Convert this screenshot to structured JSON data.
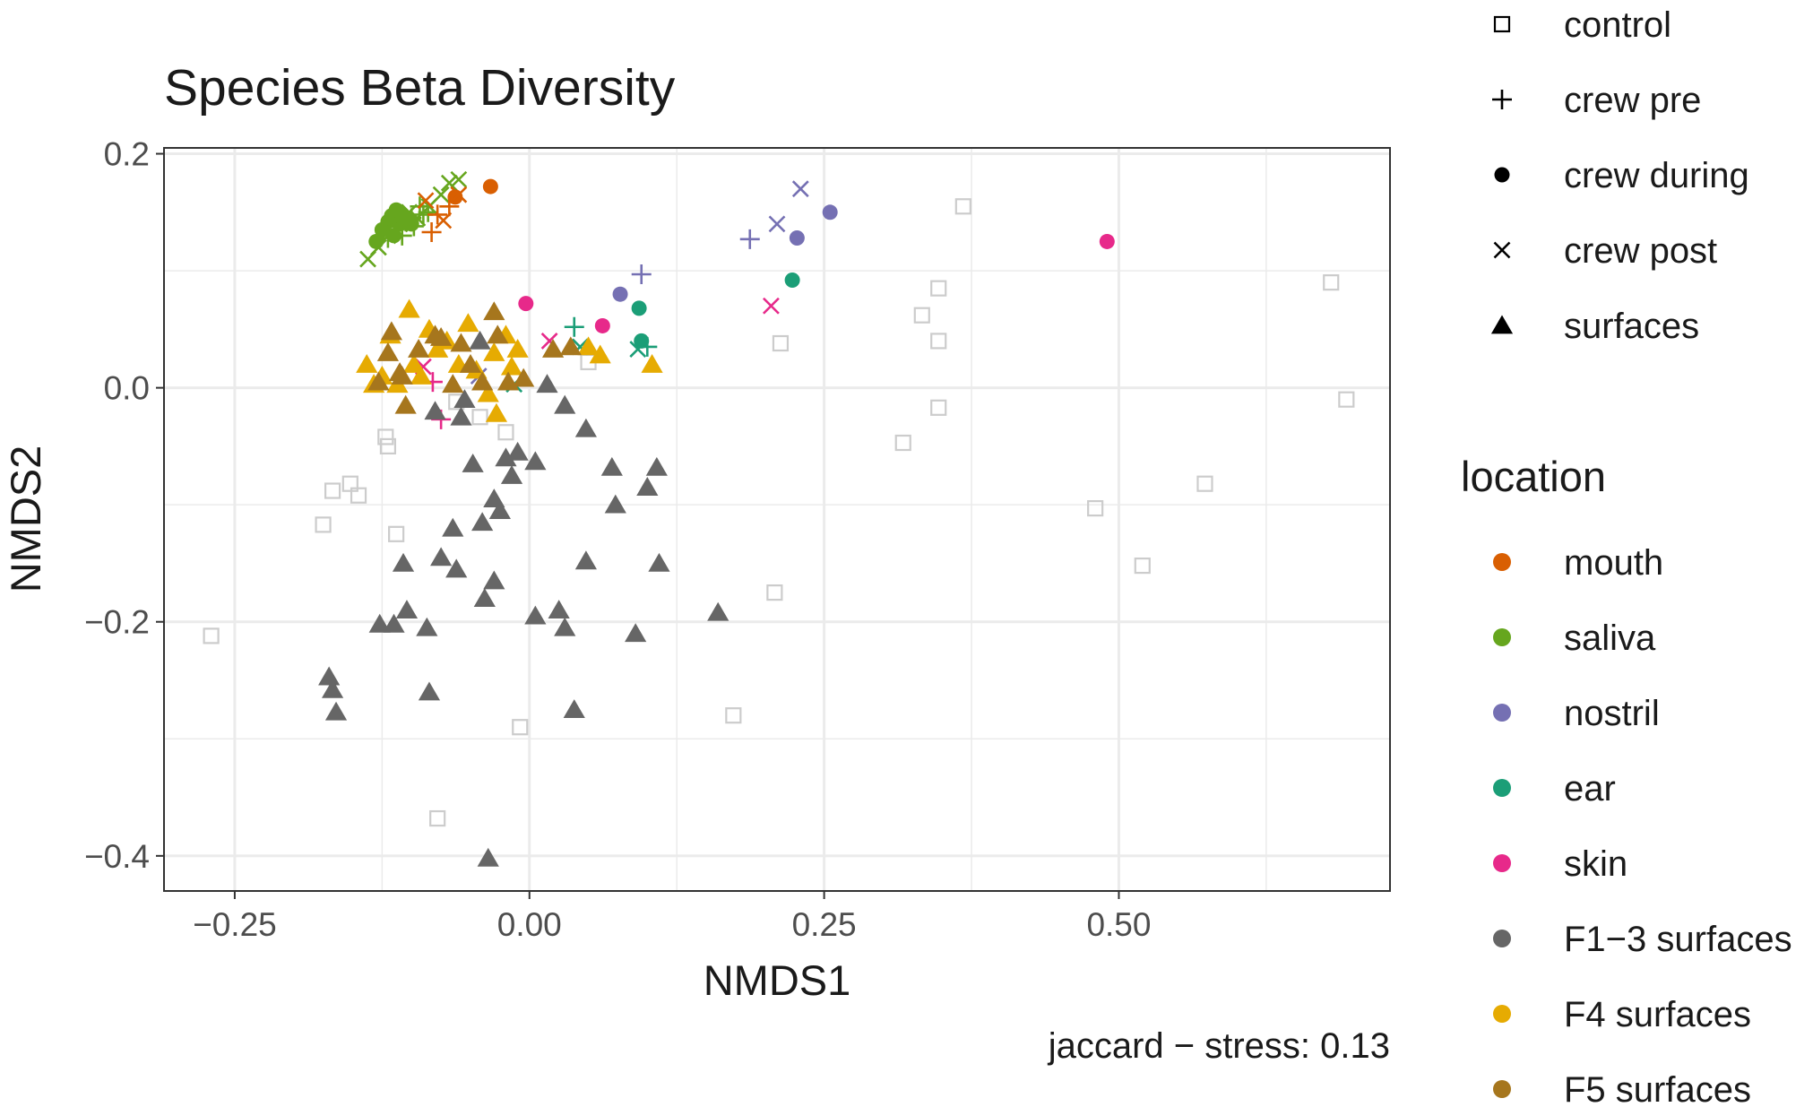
{
  "chart_data": {
    "type": "scatter",
    "title": "Species Beta Diversity",
    "xlabel": "NMDS1",
    "ylabel": "NMDS2",
    "xlim": [
      -0.31,
      0.73
    ],
    "ylim": [
      -0.43,
      0.205
    ],
    "x_ticks": [
      -0.25,
      0.0,
      0.25,
      0.5
    ],
    "x_tick_labels": [
      "−0.25",
      "0.00",
      "0.25",
      "0.50"
    ],
    "y_ticks": [
      -0.4,
      -0.2,
      0.0,
      0.2
    ],
    "y_tick_labels": [
      "−0.4",
      "−0.2",
      "0.0",
      "0.2"
    ],
    "grid": true,
    "caption": "jaccard − stress: 0.13",
    "shape_legend": {
      "items": [
        {
          "shape": "square",
          "label": "control"
        },
        {
          "shape": "plus",
          "label": "crew pre"
        },
        {
          "shape": "circle",
          "label": "crew during"
        },
        {
          "shape": "cross",
          "label": "crew post"
        },
        {
          "shape": "triangle",
          "label": "surfaces"
        }
      ]
    },
    "color_legend": {
      "title": "location",
      "items": [
        {
          "label": "mouth",
          "color": "#D95F02"
        },
        {
          "label": "saliva",
          "color": "#66A61E"
        },
        {
          "label": "nostril",
          "color": "#7570B3"
        },
        {
          "label": "ear",
          "color": "#1B9E77"
        },
        {
          "label": "skin",
          "color": "#E7298A"
        },
        {
          "label": "F1−3 surfaces",
          "color": "#666666"
        },
        {
          "label": "F4 surfaces",
          "color": "#E6AB02"
        },
        {
          "label": "F5 surfaces",
          "color": "#A6761D"
        }
      ]
    },
    "control_color": "#cccccc",
    "series": [
      {
        "location": "control",
        "shape": "square",
        "points": [
          [
            -0.27,
            -0.212
          ],
          [
            -0.175,
            -0.117
          ],
          [
            -0.167,
            -0.088
          ],
          [
            -0.152,
            -0.082
          ],
          [
            -0.145,
            -0.092
          ],
          [
            -0.122,
            -0.042
          ],
          [
            -0.12,
            -0.05
          ],
          [
            -0.113,
            -0.125
          ],
          [
            -0.078,
            -0.368
          ],
          [
            -0.062,
            -0.012
          ],
          [
            -0.042,
            -0.025
          ],
          [
            -0.02,
            -0.038
          ],
          [
            -0.008,
            -0.29
          ],
          [
            0.05,
            0.022
          ],
          [
            0.173,
            -0.28
          ],
          [
            0.208,
            -0.175
          ],
          [
            0.213,
            0.038
          ],
          [
            0.317,
            -0.047
          ],
          [
            0.333,
            0.062
          ],
          [
            0.347,
            0.085
          ],
          [
            0.347,
            0.04
          ],
          [
            0.347,
            -0.017
          ],
          [
            0.368,
            0.155
          ],
          [
            0.48,
            -0.103
          ],
          [
            0.52,
            -0.152
          ],
          [
            0.573,
            -0.082
          ],
          [
            0.68,
            0.09
          ],
          [
            0.693,
            -0.01
          ]
        ]
      },
      {
        "location": "saliva",
        "shape": "circle",
        "points": [
          [
            -0.13,
            0.125
          ],
          [
            -0.125,
            0.135
          ],
          [
            -0.12,
            0.142
          ],
          [
            -0.117,
            0.147
          ],
          [
            -0.113,
            0.152
          ],
          [
            -0.108,
            0.148
          ],
          [
            -0.11,
            0.14
          ],
          [
            -0.104,
            0.145
          ],
          [
            -0.115,
            0.13
          ],
          [
            -0.1,
            0.14
          ]
        ]
      },
      {
        "location": "saliva",
        "shape": "plus",
        "points": [
          [
            -0.115,
            0.135
          ],
          [
            -0.108,
            0.13
          ],
          [
            -0.1,
            0.145
          ],
          [
            -0.093,
            0.155
          ],
          [
            -0.086,
            0.15
          ],
          [
            -0.098,
            0.138
          ],
          [
            -0.12,
            0.128
          ],
          [
            -0.105,
            0.142
          ],
          [
            -0.09,
            0.148
          ],
          [
            -0.112,
            0.138
          ]
        ]
      },
      {
        "location": "saliva",
        "shape": "cross",
        "points": [
          [
            -0.137,
            0.11
          ],
          [
            -0.12,
            0.13
          ],
          [
            -0.11,
            0.14
          ],
          [
            -0.095,
            0.145
          ],
          [
            -0.085,
            0.155
          ],
          [
            -0.075,
            0.165
          ],
          [
            -0.068,
            0.175
          ],
          [
            -0.06,
            0.178
          ],
          [
            -0.102,
            0.15
          ],
          [
            -0.128,
            0.12
          ]
        ]
      },
      {
        "location": "mouth",
        "shape": "circle",
        "points": [
          [
            -0.033,
            0.172
          ],
          [
            -0.063,
            0.163
          ]
        ]
      },
      {
        "location": "mouth",
        "shape": "plus",
        "points": [
          [
            -0.083,
            0.133
          ],
          [
            -0.068,
            0.155
          ],
          [
            -0.078,
            0.148
          ]
        ]
      },
      {
        "location": "mouth",
        "shape": "cross",
        "points": [
          [
            -0.073,
            0.143
          ],
          [
            -0.06,
            0.165
          ],
          [
            -0.088,
            0.16
          ]
        ]
      },
      {
        "location": "nostril",
        "shape": "circle",
        "points": [
          [
            0.077,
            0.08
          ],
          [
            0.227,
            0.128
          ],
          [
            0.255,
            0.15
          ]
        ]
      },
      {
        "location": "nostril",
        "shape": "plus",
        "points": [
          [
            0.095,
            0.097
          ],
          [
            0.187,
            0.127
          ]
        ]
      },
      {
        "location": "nostril",
        "shape": "cross",
        "points": [
          [
            -0.043,
            0.01
          ],
          [
            0.21,
            0.14
          ],
          [
            0.23,
            0.17
          ]
        ]
      },
      {
        "location": "ear",
        "shape": "circle",
        "points": [
          [
            0.093,
            0.068
          ],
          [
            0.095,
            0.04
          ],
          [
            0.223,
            0.092
          ]
        ]
      },
      {
        "location": "ear",
        "shape": "plus",
        "points": [
          [
            0.038,
            0.052
          ],
          [
            0.1,
            0.035
          ]
        ]
      },
      {
        "location": "ear",
        "shape": "cross",
        "points": [
          [
            -0.013,
            0.003
          ],
          [
            0.043,
            0.035
          ],
          [
            0.092,
            0.033
          ]
        ]
      },
      {
        "location": "skin",
        "shape": "circle",
        "points": [
          [
            -0.003,
            0.072
          ],
          [
            0.062,
            0.053
          ],
          [
            0.49,
            0.125
          ]
        ]
      },
      {
        "location": "skin",
        "shape": "plus",
        "points": [
          [
            -0.082,
            0.005
          ],
          [
            -0.075,
            -0.027
          ]
        ]
      },
      {
        "location": "skin",
        "shape": "cross",
        "points": [
          [
            -0.09,
            0.018
          ],
          [
            0.017,
            0.04
          ],
          [
            0.205,
            0.07
          ]
        ]
      },
      {
        "location": "F1−3 surfaces",
        "shape": "triangle",
        "points": [
          [
            -0.17,
            -0.247
          ],
          [
            -0.167,
            -0.258
          ],
          [
            -0.164,
            -0.277
          ],
          [
            -0.127,
            -0.202
          ],
          [
            -0.115,
            -0.202
          ],
          [
            -0.104,
            -0.19
          ],
          [
            -0.107,
            -0.15
          ],
          [
            -0.087,
            -0.205
          ],
          [
            -0.085,
            -0.26
          ],
          [
            -0.075,
            -0.145
          ],
          [
            -0.065,
            -0.12
          ],
          [
            -0.062,
            -0.155
          ],
          [
            -0.058,
            -0.025
          ],
          [
            -0.08,
            -0.02
          ],
          [
            -0.048,
            -0.065
          ],
          [
            -0.04,
            -0.115
          ],
          [
            -0.038,
            -0.18
          ],
          [
            -0.03,
            -0.165
          ],
          [
            -0.03,
            -0.095
          ],
          [
            -0.025,
            -0.105
          ],
          [
            -0.02,
            -0.06
          ],
          [
            -0.015,
            -0.075
          ],
          [
            -0.01,
            -0.055
          ],
          [
            0.005,
            -0.063
          ],
          [
            0.005,
            -0.195
          ],
          [
            0.015,
            0.003
          ],
          [
            0.025,
            -0.19
          ],
          [
            0.03,
            -0.205
          ],
          [
            0.03,
            -0.015
          ],
          [
            0.038,
            -0.275
          ],
          [
            0.048,
            -0.035
          ],
          [
            0.048,
            -0.148
          ],
          [
            0.07,
            -0.068
          ],
          [
            0.073,
            -0.1
          ],
          [
            0.09,
            -0.21
          ],
          [
            0.1,
            -0.085
          ],
          [
            0.108,
            -0.068
          ],
          [
            0.11,
            -0.15
          ],
          [
            0.16,
            -0.192
          ],
          [
            -0.035,
            -0.402
          ],
          [
            -0.042,
            0.04
          ],
          [
            -0.055,
            -0.01
          ]
        ]
      },
      {
        "location": "F4 surfaces",
        "shape": "triangle",
        "points": [
          [
            -0.138,
            0.02
          ],
          [
            -0.132,
            0.003
          ],
          [
            -0.118,
            0.045
          ],
          [
            -0.112,
            0.003
          ],
          [
            -0.102,
            0.067
          ],
          [
            -0.098,
            0.02
          ],
          [
            -0.092,
            0.01
          ],
          [
            -0.085,
            0.05
          ],
          [
            -0.078,
            0.033
          ],
          [
            -0.07,
            0.04
          ],
          [
            -0.06,
            0.02
          ],
          [
            -0.052,
            0.055
          ],
          [
            -0.045,
            0.015
          ],
          [
            -0.035,
            -0.005
          ],
          [
            -0.03,
            0.03
          ],
          [
            -0.028,
            -0.022
          ],
          [
            -0.02,
            0.045
          ],
          [
            -0.015,
            0.018
          ],
          [
            -0.01,
            0.033
          ],
          [
            0.05,
            0.035
          ],
          [
            0.06,
            0.028
          ],
          [
            0.104,
            0.02
          ],
          [
            -0.125,
            0.01
          ]
        ]
      },
      {
        "location": "F5 surfaces",
        "shape": "triangle",
        "points": [
          [
            -0.128,
            0.005
          ],
          [
            -0.12,
            0.03
          ],
          [
            -0.117,
            0.048
          ],
          [
            -0.108,
            0.01
          ],
          [
            -0.105,
            -0.015
          ],
          [
            -0.094,
            0.033
          ],
          [
            -0.08,
            0.045
          ],
          [
            -0.075,
            0.043
          ],
          [
            -0.065,
            0.003
          ],
          [
            -0.058,
            0.038
          ],
          [
            -0.05,
            0.02
          ],
          [
            -0.04,
            0.005
          ],
          [
            -0.03,
            0.065
          ],
          [
            -0.027,
            0.045
          ],
          [
            -0.018,
            0.005
          ],
          [
            -0.005,
            0.008
          ],
          [
            0.02,
            0.033
          ],
          [
            0.035,
            0.035
          ],
          [
            -0.11,
            0.013
          ]
        ]
      }
    ]
  }
}
